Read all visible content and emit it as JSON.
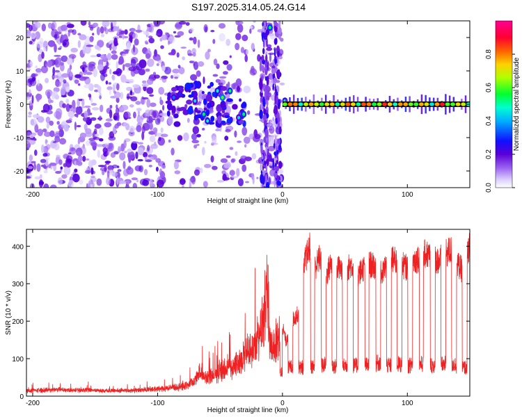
{
  "title": "S197.2025.314.05.24.G14",
  "chart_data": [
    {
      "type": "heatmap",
      "name": "spectrogram",
      "xlabel": "Height of straight line (km)",
      "ylabel": "Frequency (Hz)",
      "xlim": [
        -205,
        150
      ],
      "ylim": [
        -25,
        25
      ],
      "xticks": [
        -200,
        -100,
        0,
        100
      ],
      "yticks": [
        -20,
        -10,
        0,
        10,
        20
      ],
      "colorbar": {
        "label": "Normalized spectral amplitude",
        "range": [
          0,
          1
        ],
        "ticks": [
          "0.0",
          "0.2",
          "0.4",
          "0.6",
          "0.8"
        ],
        "colors": [
          "#ffffff",
          "#b7a0f2",
          "#7a2de0",
          "#2020ff",
          "#00c8ff",
          "#00ff40",
          "#f0ff00",
          "#ff8000",
          "#ff0040",
          "#ff00a0"
        ]
      },
      "noise_region_km": [
        -205,
        0
      ],
      "signal_line": {
        "x_start": 0,
        "x_end": 150,
        "frequency_hz": 0,
        "dominant_amplitude": 0.9
      },
      "bright_features": [
        {
          "x": -87,
          "y": 2,
          "amp": 0.35
        },
        {
          "x": -82,
          "y": 3,
          "amp": 0.3
        },
        {
          "x": -70,
          "y": 1,
          "amp": 0.45
        },
        {
          "x": -63,
          "y": -3,
          "amp": 0.55
        },
        {
          "x": -60,
          "y": -5,
          "amp": 0.5
        },
        {
          "x": -52,
          "y": 4,
          "amp": 0.5
        },
        {
          "x": -48,
          "y": 2,
          "amp": 0.6
        },
        {
          "x": -42,
          "y": 4,
          "amp": 0.55
        },
        {
          "x": -35,
          "y": -4,
          "amp": 0.45
        },
        {
          "x": -31,
          "y": -3,
          "amp": 0.55
        },
        {
          "x": -10,
          "y": 23,
          "amp": 0.55
        },
        {
          "x": 2,
          "y": 1,
          "amp": 0.5
        }
      ]
    },
    {
      "type": "line",
      "name": "snr",
      "xlabel": "Height of straight line (km)",
      "ylabel": "SNR (10 * v/v)",
      "xlim": [
        -205,
        150
      ],
      "ylim": [
        0,
        445
      ],
      "xticks": [
        -200,
        -100,
        0,
        100
      ],
      "yticks": [
        0,
        100,
        200,
        300,
        400
      ],
      "color": "#ee2222",
      "series": [
        {
          "name": "SNR",
          "x": [
            -205,
            -180,
            -160,
            -140,
            -120,
            -100,
            -90,
            -80,
            -75,
            -70,
            -66,
            -62,
            -55,
            -50,
            -45,
            -40,
            -35,
            -30,
            -25,
            -20,
            -15,
            -12,
            -10,
            -8,
            -5,
            -2,
            0,
            3,
            6,
            10,
            14,
            18,
            22,
            26,
            30,
            35,
            40,
            45,
            50,
            55,
            60,
            65,
            70,
            75,
            80,
            85,
            90,
            95,
            100,
            105,
            110,
            115,
            120,
            125,
            130,
            135,
            140,
            145,
            150
          ],
          "values": [
            18,
            22,
            20,
            18,
            20,
            24,
            28,
            32,
            40,
            52,
            80,
            58,
            70,
            85,
            90,
            100,
            110,
            140,
            160,
            190,
            250,
            380,
            170,
            160,
            190,
            200,
            200,
            150,
            210,
            220,
            240,
            380,
            420,
            360,
            390,
            340,
            380,
            360,
            350,
            370,
            340,
            360,
            370,
            360,
            340,
            390,
            380,
            370,
            360,
            380,
            390,
            400,
            390,
            380,
            400,
            410,
            370,
            350,
            420
          ],
          "floor_x": [
            -5,
            3,
            8,
            15,
            22,
            28,
            35,
            40,
            46,
            52,
            58,
            63,
            70,
            78,
            85,
            92,
            100,
            108,
            115,
            122,
            130,
            138,
            140
          ],
          "floor_values": [
            60,
            75,
            85,
            80,
            85,
            80,
            90,
            85,
            80,
            90,
            85,
            90,
            85,
            95,
            85,
            90,
            85,
            90,
            90,
            85,
            90,
            90,
            80
          ]
        }
      ]
    }
  ]
}
